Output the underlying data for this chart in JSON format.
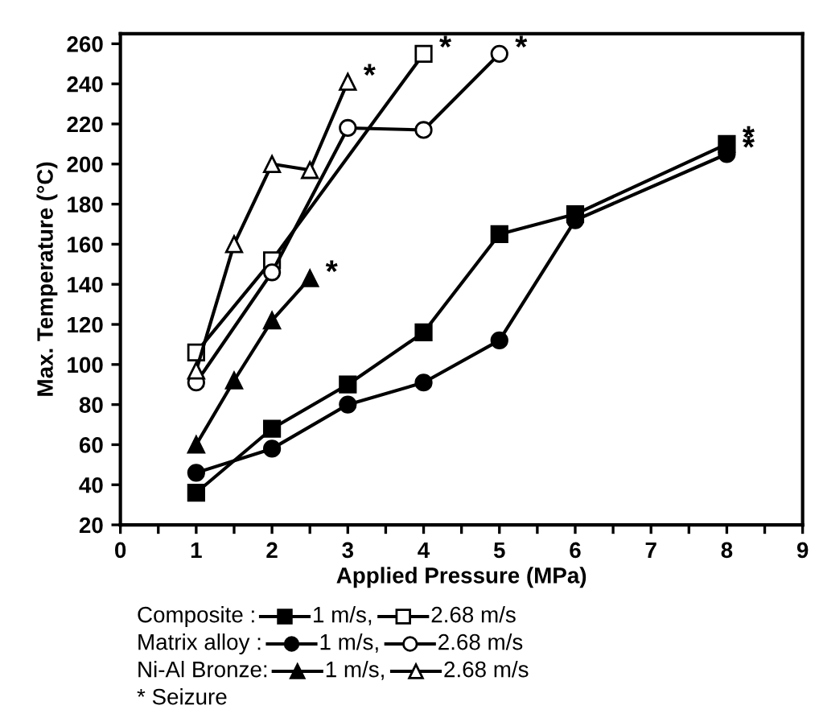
{
  "chart_data": {
    "type": "line",
    "xlabel": "Applied Pressure (MPa)",
    "ylabel": "Max. Temperature (°C)",
    "xlim": [
      0,
      9
    ],
    "ylim": [
      20,
      265
    ],
    "xticks": [
      0,
      {
        "value": 0.5,
        "label": null
      },
      1,
      {
        "value": 1.5,
        "label": null
      },
      2,
      {
        "value": 2.5,
        "label": null
      },
      3,
      {
        "value": 3.5,
        "label": null
      },
      4,
      {
        "value": 4.5,
        "label": null
      },
      5,
      {
        "value": 5.5,
        "label": null
      },
      6,
      {
        "value": 6.5,
        "label": null
      },
      7,
      {
        "value": 7.5,
        "label": null
      },
      8,
      {
        "value": 8.5,
        "label": null
      },
      9
    ],
    "yticks": [
      20,
      40,
      60,
      80,
      100,
      120,
      140,
      160,
      180,
      200,
      220,
      240,
      260
    ],
    "grid": false,
    "legend": "bottom",
    "line_style": "solid",
    "series": [
      {
        "name": "1 m/s,",
        "color": "#000000",
        "marker": "square",
        "x": [
          1,
          2,
          3,
          4,
          5,
          6,
          8
        ],
        "values": [
          36,
          68,
          90,
          116,
          165,
          175,
          210
        ]
      },
      {
        "name": "2.68 m/s",
        "color": "#000000",
        "marker": "square",
        "x": [
          1,
          2,
          4
        ],
        "values": [
          106,
          152,
          255
        ]
      },
      {
        "name": "1 m/s,",
        "color": "#000000",
        "marker": "circle",
        "x": [
          1,
          2,
          3,
          4,
          5,
          6,
          8
        ],
        "values": [
          46,
          58,
          80,
          91,
          112,
          172,
          205
        ]
      },
      {
        "name": "2.68 m/s",
        "color": "#000000",
        "marker": "circle",
        "x": [
          1,
          2,
          3,
          4,
          5
        ],
        "values": [
          91,
          146,
          218,
          217,
          255
        ]
      },
      {
        "name": "1 m/s,",
        "color": "#000000",
        "marker": "triangle",
        "x": [
          1,
          1.5,
          2,
          2.5
        ],
        "values": [
          60,
          92,
          122,
          143
        ]
      },
      {
        "name": "2.68 m/s",
        "color": "#000000",
        "marker": "triangle",
        "x": [
          1,
          1.5,
          2,
          2.5,
          3
        ],
        "values": [
          97,
          160,
          200,
          197,
          241
        ]
      }
    ],
    "annotations": [
      "Composite :",
      "Matrix alloy :",
      "Ni-Al Bronze:",
      "* Seizure",
      {
        "text": "*",
        "x": 4,
        "y": 255
      },
      {
        "text": "*",
        "x": 5,
        "y": 255
      },
      {
        "text": "*",
        "x": 3,
        "y": 241
      },
      {
        "text": "*",
        "x": 2.5,
        "y": 143
      },
      {
        "text": "*",
        "x": 8,
        "y": 210
      },
      {
        "text": "*",
        "x": 8,
        "y": 205
      }
    ]
  }
}
